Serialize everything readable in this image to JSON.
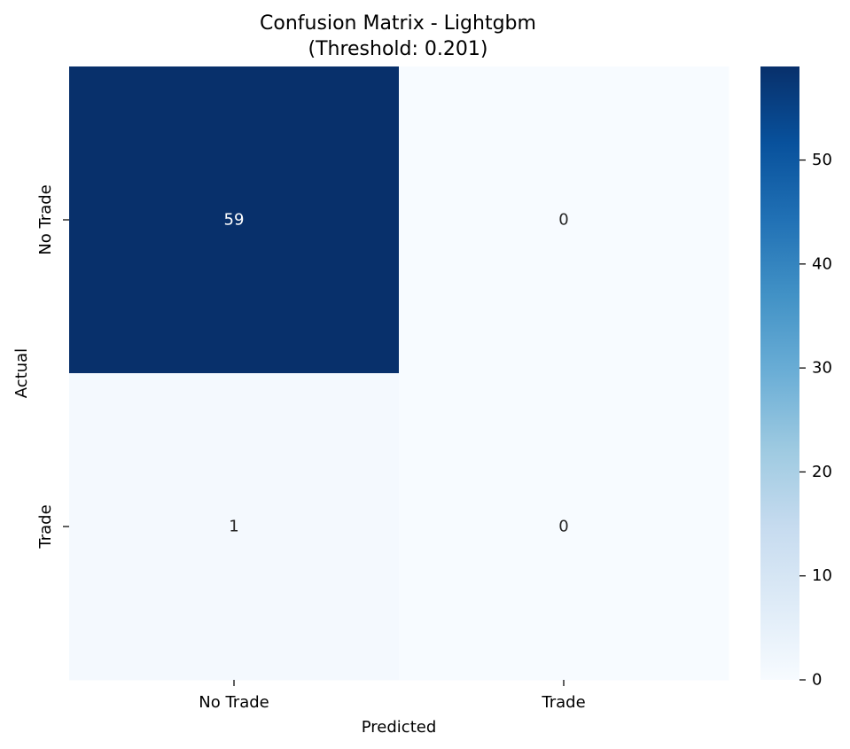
{
  "chart_data": {
    "type": "heatmap",
    "title": "Confusion Matrix - Lightgbm",
    "subtitle": "(Threshold: 0.201)",
    "xlabel": "Predicted",
    "ylabel": "Actual",
    "x_categories": [
      "No Trade",
      "Trade"
    ],
    "y_categories": [
      "No Trade",
      "Trade"
    ],
    "values": [
      [
        59,
        0
      ],
      [
        1,
        0
      ]
    ],
    "colormap": "Blues",
    "colorbar": {
      "range": [
        0,
        59
      ],
      "ticks": [
        0,
        10,
        20,
        30,
        40,
        50
      ],
      "tick_labels": [
        "0",
        "10",
        "20",
        "30",
        "40",
        "50"
      ]
    },
    "colors": {
      "low": "#f7fbff",
      "high": "#08306b",
      "text_dark": "#262626",
      "text_light": "#ffffff"
    }
  }
}
